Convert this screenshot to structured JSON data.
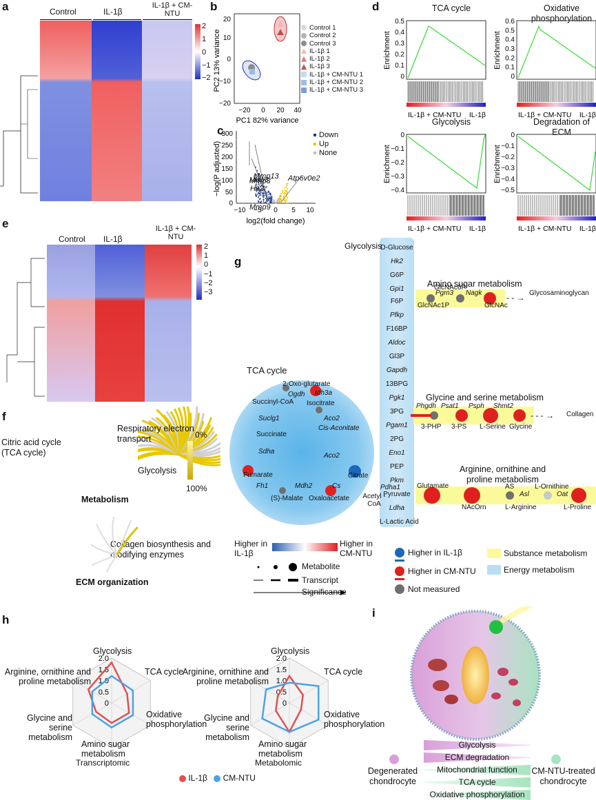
{
  "panels": {
    "a": "a",
    "b": "b",
    "c": "c",
    "d": "d",
    "e": "e",
    "f": "f",
    "g": "g",
    "h": "h",
    "i": "i"
  },
  "heatmap_a": {
    "groups": [
      "Control",
      "IL-1β",
      "IL-1β + CM-NTU"
    ],
    "scale": [
      "2",
      "1",
      "0",
      "−1",
      "−2"
    ]
  },
  "heatmap_e": {
    "groups": [
      "Control",
      "IL-1β",
      "IL-1β + CM-NTU"
    ],
    "scale": [
      "2",
      "1",
      "0",
      "−1",
      "−2",
      "−3"
    ]
  },
  "pca": {
    "xlabel": "PC1 82% variance",
    "ylabel": "PC2 13% variance",
    "xticks": [
      "−20",
      "0",
      "20",
      "40"
    ],
    "yticks": [
      "20",
      "10",
      "0",
      "−10",
      "−20"
    ],
    "legend": [
      "Control 1",
      "Control 2",
      "Control 3",
      "IL-1β 1",
      "IL-1β 2",
      "IL-1β 3",
      "IL-1β + CM-NTU 1",
      "IL-1β + CM-NTU 2",
      "IL-1β + CM-NTU 3"
    ],
    "colors": [
      "#d9d9d9",
      "#b3b3b3",
      "#8c8c8c",
      "#f4b6b6",
      "#e07a7a",
      "#c05050",
      "#c6d9f1",
      "#9ebbe6",
      "#7aa0d8"
    ]
  },
  "volcano": {
    "xlabel": "log2(fold change)",
    "ylabel": "−log(P adjusted)",
    "xticks": [
      "−10",
      "−5",
      "0",
      "5",
      "10"
    ],
    "yticks": [
      "0",
      "50",
      "100",
      "150",
      "200",
      "250",
      "300"
    ],
    "legend": [
      "Down",
      "Up",
      "None"
    ],
    "colors": [
      "#1f3b8c",
      "#f2c200",
      "#bdbdbd"
    ],
    "genes": [
      "Mmp3",
      "Mmp13",
      "Hk2",
      "Mmp9",
      "Atp6v0e2"
    ]
  },
  "gsea": [
    {
      "title": "TCA cycle",
      "ylabel": "Enrichment",
      "yticks": [
        "0.5",
        "0.4",
        "0.3",
        "0.2",
        "0.1",
        "0"
      ],
      "left": "IL-1β + CM-NTU",
      "right": "IL-1β"
    },
    {
      "title": "Oxidative phosphorylation",
      "ylabel": "Enrichment",
      "yticks": [
        "0.6",
        "0.5",
        "0.4",
        "0.3",
        "0.2",
        "0.1",
        "0"
      ],
      "left": "IL-1β + CM-NTU",
      "right": "IL-1β"
    },
    {
      "title": "Glycolysis",
      "ylabel": "Enrichment",
      "yticks": [
        "0",
        "−0.1",
        "−0.2",
        "−0.3",
        "−0.4"
      ],
      "left": "IL-1β + CM-NTU",
      "right": "IL-1β"
    },
    {
      "title": "Degradation of ECM",
      "ylabel": "Enrichment",
      "yticks": [
        "0",
        "−0.1",
        "−0.2",
        "−0.3",
        "−0.4",
        "−0.5"
      ],
      "left": "IL-1β + CM-NTU",
      "right": "IL-1β"
    }
  ],
  "panel_f": {
    "labels": [
      "Citric acid cycle (TCA cycle)",
      "Respiratory electron transport",
      "Glycolysis",
      "Metabolism",
      "Collagen biosynthesis and modifying enzymes",
      "ECM organization"
    ],
    "scale": [
      "0%",
      "100%"
    ]
  },
  "panel_g": {
    "glycolysis_title": "Glycolysis",
    "glycolysis": [
      "D-Glucose",
      "Hk2",
      "G6P",
      "Gpi1",
      "F6P",
      "Pfkp",
      "F16BP",
      "Aldoc",
      "Gl3P",
      "Gapdh",
      "13BPG",
      "Pgk1",
      "3PG",
      "Pgam1",
      "2PG",
      "Eno1",
      "PEP",
      "Pkm",
      "Pyruvate",
      "Ldha",
      "L-Lactic Acid"
    ],
    "tca_title": "TCA cycle",
    "tca": [
      "2-Oxo-glutarate",
      "Ogdh",
      "Idh3a",
      "Isocitrate",
      "Succinyl-CoA",
      "Suclg1",
      "Aco2",
      "Cis-Aconitate",
      "Succinate",
      "Sdha",
      "Aco2",
      "Citrate",
      "Fumarate",
      "Fh1",
      "Mdh2",
      "Cs",
      "(S)-Malate",
      "Oxaloacetate"
    ],
    "acetyl": "Acetyl -CoA",
    "pdha": "Pdha1",
    "amino_title": "Amino sugar metabolism",
    "amino": [
      "GlcNAc6P",
      "Pgm3",
      "Nagk",
      "GlcNAc1P",
      "GlcNAc",
      "Glycosaminoglycan"
    ],
    "gly_title": "Glycine and serine metabolism",
    "gly": [
      "Phgdh",
      "Psat1",
      "Psph",
      "Shmt2",
      "3-PHP",
      "3-PS",
      "L-Serine",
      "Glycine",
      "Collagen"
    ],
    "arg_title": "Arginine, ornithine and proline metabolism",
    "arg": [
      "AS",
      "Glutamate",
      "NAcOrn",
      "Asl",
      "L-Arginine",
      "L-Ornithine",
      "Oat",
      "L-Proline"
    ],
    "legend": {
      "higher_il": "Higher in IL-1β",
      "higher_cm": "Higher in CM-NTU",
      "grad_l": "Higher in IL-1β",
      "grad_r": "Higher in CM-NTU",
      "metabolite": "Metabolite",
      "transcript": "Transcript",
      "significance": "Significance",
      "not_measured": "Not measured",
      "substance": "Substance metabolism",
      "energy": "Energy metabolism"
    }
  },
  "radar": {
    "axes": [
      "Glycolysis",
      "TCA cycle",
      "Oxidative phosphorylation",
      "Amino sugar metabolism",
      "Glycine and serine metabolism",
      "Arginine, ornithine and proline metabolism"
    ],
    "ticks": [
      "2.0",
      "1.5",
      "1.0",
      "0.5",
      "0"
    ],
    "titles": [
      "Transcriptomic",
      "Metabolomic"
    ],
    "legend": [
      "IL-1β",
      "CM-NTU"
    ],
    "colors": [
      "#e05050",
      "#4aa3e8"
    ]
  },
  "chart_data": [
    {
      "type": "radar",
      "title": "Transcriptomic",
      "axes": [
        "Glycolysis",
        "TCA cycle",
        "Oxidative phosphorylation",
        "Amino sugar metabolism",
        "Glycine and serine metabolism",
        "Arginine, ornithine and proline metabolism"
      ],
      "series": [
        {
          "name": "IL-1β",
          "values": [
            1.8,
            0.8,
            0.9,
            0.9,
            0.8,
            1.2
          ]
        },
        {
          "name": "CM-NTU",
          "values": [
            1.2,
            1.1,
            1.1,
            1.1,
            1.0,
            1.0
          ]
        }
      ],
      "ylim": [
        0,
        2
      ]
    },
    {
      "type": "radar",
      "title": "Metabolomic",
      "axes": [
        "Glycolysis",
        "TCA cycle",
        "Oxidative phosphorylation",
        "Amino sugar metabolism",
        "Glycine and serine metabolism",
        "Arginine, ornithine and proline metabolism"
      ],
      "series": [
        {
          "name": "IL-1β",
          "values": [
            1.2,
            0.7,
            0.6,
            1.3,
            0.7,
            0.6
          ]
        },
        {
          "name": "CM-NTU",
          "values": [
            0.9,
            1.5,
            1.5,
            1.3,
            1.4,
            1.2
          ]
        }
      ],
      "ylim": [
        0,
        2
      ]
    }
  ],
  "panel_i": {
    "left": "Degenerated chondrocyte",
    "right": "CM-NTU-treated chondrocyte",
    "bars": [
      "Glycolysis",
      "ECM degradation",
      "Mitochondrial function",
      "TCA cycle",
      "Oxidative phosphorylation"
    ]
  }
}
